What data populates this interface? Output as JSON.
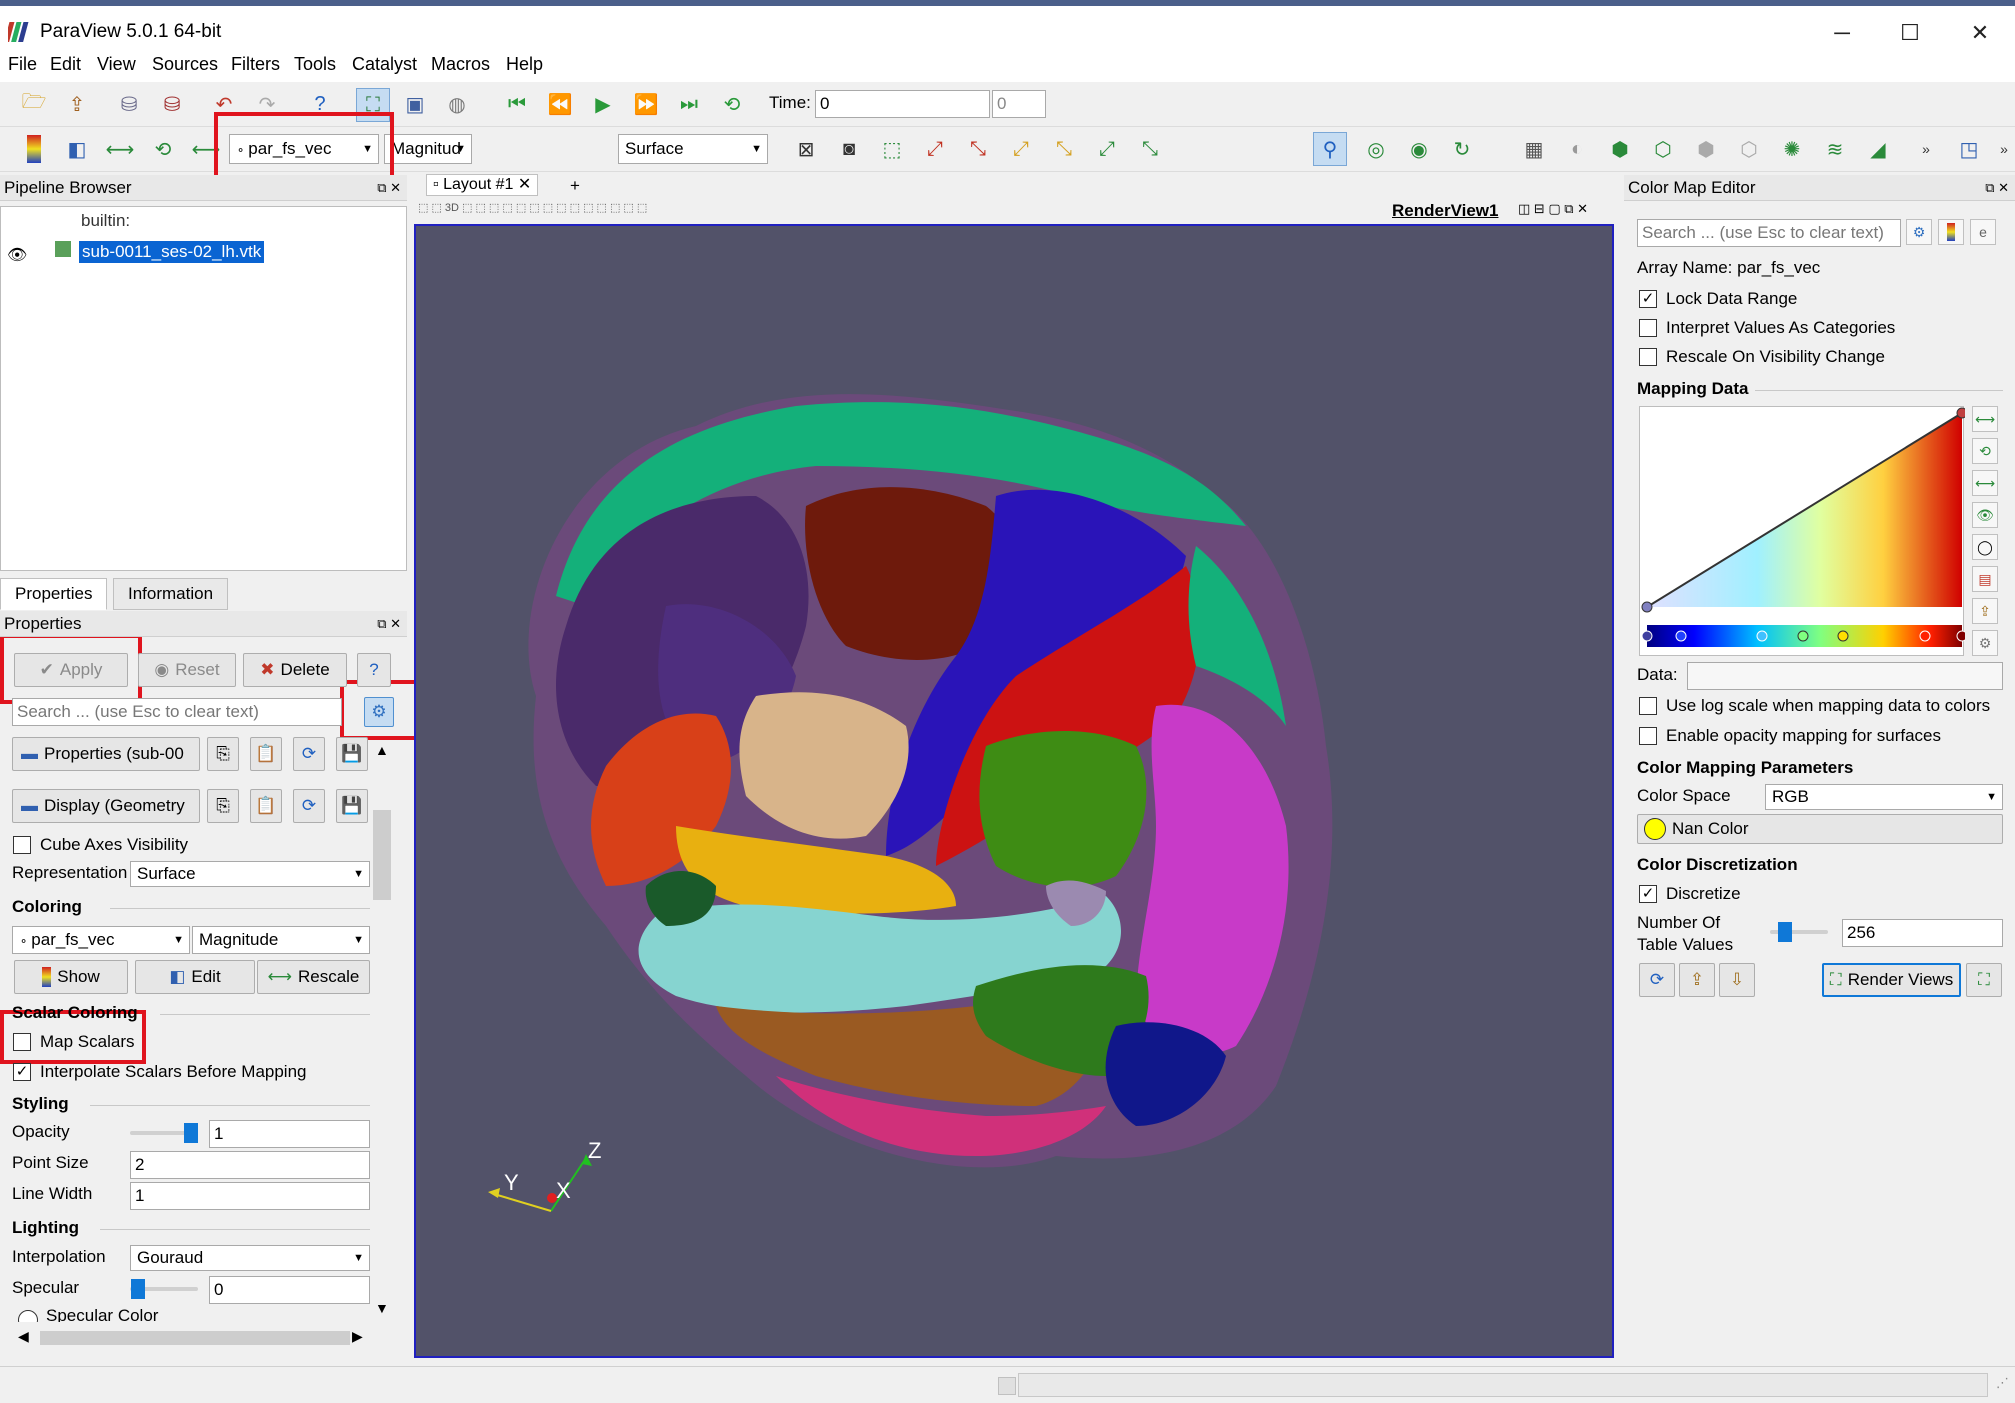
{
  "window": {
    "title": "ParaView 5.0.1 64-bit",
    "minimize": "─",
    "maximize": "☐",
    "close": "✕"
  },
  "menu": [
    "File",
    "Edit",
    "View",
    "Sources",
    "Filters",
    "Tools",
    "Catalyst",
    "Macros",
    "Help"
  ],
  "toolbar": {
    "time_label": "Time:",
    "time_value": "0",
    "time_index": "0",
    "color_array": "par_fs_vec",
    "color_component": "Magnitud",
    "representation": "Surface"
  },
  "pipeline": {
    "header": "Pipeline Browser",
    "builtin": "builtin:",
    "source_name": "sub-0011_ses-02_lh.vtk"
  },
  "tabs": {
    "properties": "Properties",
    "information": "Information"
  },
  "properties": {
    "header": "Properties",
    "apply": "Apply",
    "reset": "Reset",
    "delete": "Delete",
    "help": "?",
    "search_placeholder": "Search ... (use Esc to clear text)",
    "properties_group": "Properties (sub-00",
    "display_group": "Display (Geometry",
    "cube_axes": "Cube Axes Visibility",
    "representation_label": "Representation",
    "representation_value": "Surface",
    "coloring_section": "Coloring",
    "coloring_array": "par_fs_vec",
    "coloring_component": "Magnitude",
    "show": "Show",
    "edit": "Edit",
    "rescale": "Rescale",
    "scalar_coloring_section": "Scalar Coloring",
    "map_scalars": "Map Scalars",
    "interpolate_scalars": "Interpolate Scalars Before Mapping",
    "styling_section": "Styling",
    "opacity_label": "Opacity",
    "opacity_value": "1",
    "point_size_label": "Point Size",
    "point_size_value": "2",
    "line_width_label": "Line Width",
    "line_width_value": "1",
    "lighting_section": "Lighting",
    "interpolation_label": "Interpolation",
    "interpolation_value": "Gouraud",
    "specular_label": "Specular",
    "specular_value": "0",
    "specular_color": "Specular Color"
  },
  "layout": {
    "tab_label": "Layout #1",
    "add_tab": "+",
    "view_name": "RenderView1",
    "axis_x": "X",
    "axis_y": "Y",
    "axis_z": "Z",
    "mode_3d": "3D"
  },
  "colormap": {
    "header": "Color Map Editor",
    "search_placeholder": "Search ... (use Esc to clear text)",
    "array_name": "Array Name: par_fs_vec",
    "lock_range": "Lock Data Range",
    "interpret_categories": "Interpret Values As Categories",
    "rescale_visibility": "Rescale On Visibility Change",
    "mapping_data": "Mapping Data",
    "data_label": "Data:",
    "log_scale": "Use log scale when mapping data to colors",
    "opacity_mapping": "Enable opacity mapping for surfaces",
    "params_section": "Color Mapping Parameters",
    "color_space_label": "Color Space",
    "color_space_value": "RGB",
    "nan_color": "Nan Color",
    "discretization_section": "Color Discretization",
    "discretize": "Discretize",
    "table_values_label": "Number Of Table Values",
    "table_values": "256",
    "render_views": "Render Views"
  },
  "colors": {
    "accent": "#0f78d7",
    "highlight": "#e0141e",
    "render_bg": "#525269",
    "selection": "#0a64d2"
  }
}
